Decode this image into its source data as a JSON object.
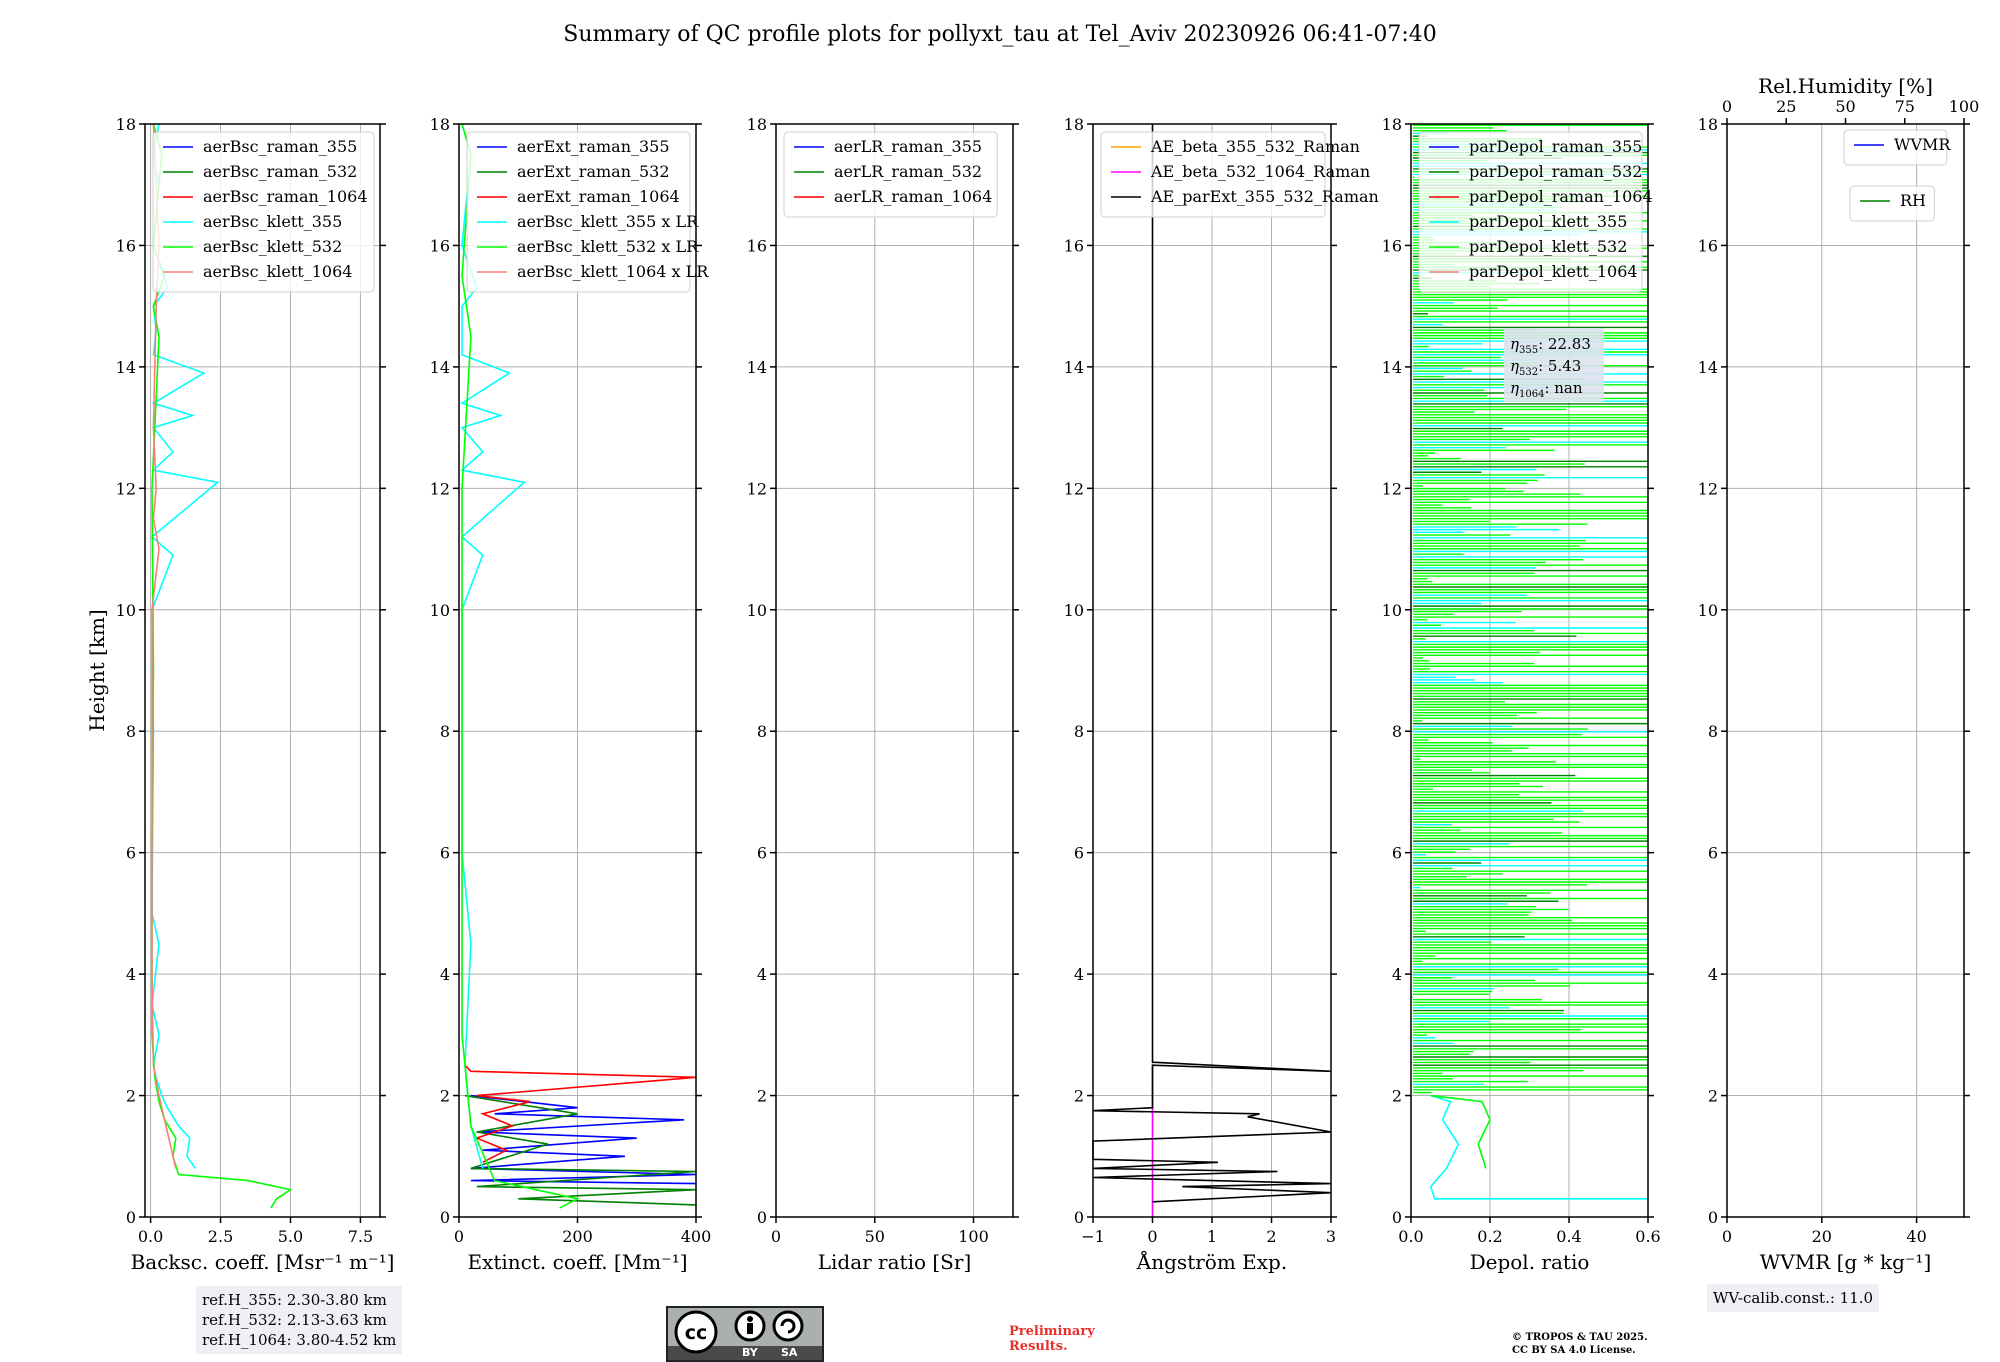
{
  "title": "Summary of QC profile plots for pollyxt_tau at Tel_Aviv 20230926 06:41-07:40",
  "footer": {
    "ref_heights": [
      "ref.H_355: 2.30-3.80 km",
      "ref.H_532: 2.13-3.63 km",
      "ref.H_1064: 3.80-4.52 km"
    ],
    "wv_calib": "WV-calib.const.: 11.0",
    "cc_labels": [
      "cc",
      "BY",
      "SA"
    ],
    "preliminary": [
      "Preliminary",
      "Results."
    ],
    "copyright": [
      "© TROPOS & TAU 2025.",
      "CC BY SA 4.0 License."
    ]
  },
  "colors": {
    "blue": "#0000ff",
    "green": "#008000",
    "red": "#ff0000",
    "cyan": "#00ffff",
    "lime": "#00ff00",
    "salmon": "#fa8072",
    "orange": "#ffa500",
    "magenta": "#ff00ff",
    "black": "#000000"
  },
  "chart_data": [
    {
      "type": "line",
      "ylabel": "Height [km]",
      "xlabel": "Backsc. coeff. [Msr⁻¹ m⁻¹]",
      "xlim": [
        -0.2,
        8.2
      ],
      "xticks": [
        0,
        2.5,
        5.0,
        7.5
      ],
      "xticklabels": [
        "0.0",
        "2.5",
        "5.0",
        "7.5"
      ],
      "ylim": [
        0,
        18
      ],
      "yticks": [
        0,
        2,
        4,
        6,
        8,
        10,
        12,
        14,
        16,
        18
      ],
      "legend": [
        "aerBsc_raman_355",
        "aerBsc_raman_532",
        "aerBsc_raman_1064",
        "aerBsc_klett_355",
        "aerBsc_klett_532",
        "aerBsc_klett_1064"
      ],
      "legend_colors": [
        "blue",
        "green",
        "red",
        "cyan",
        "lime",
        "salmon"
      ],
      "series": [
        {
          "name": "aerBsc_klett_355",
          "color": "cyan",
          "points": [
            [
              1.6,
              0.8
            ],
            [
              1.3,
              1.0
            ],
            [
              1.4,
              1.3
            ],
            [
              1.0,
              1.5
            ],
            [
              0.6,
              1.8
            ],
            [
              0.4,
              2.0
            ],
            [
              0.2,
              2.3
            ],
            [
              0.1,
              2.5
            ],
            [
              0.3,
              3.0
            ],
            [
              0.05,
              3.5
            ],
            [
              0.3,
              4.5
            ],
            [
              0.05,
              5
            ],
            [
              0.1,
              8
            ],
            [
              0.05,
              10
            ],
            [
              0.8,
              10.9
            ],
            [
              0.05,
              11.2
            ],
            [
              2.4,
              12.1
            ],
            [
              0.1,
              12.3
            ],
            [
              0.8,
              12.6
            ],
            [
              0.1,
              13
            ],
            [
              1.5,
              13.2
            ],
            [
              0.1,
              13.4
            ],
            [
              1.9,
              13.9
            ],
            [
              0.1,
              14.2
            ],
            [
              0.2,
              14.6
            ],
            [
              0.1,
              15
            ],
            [
              0.6,
              15.3
            ],
            [
              0.1,
              16
            ],
            [
              0.3,
              17
            ],
            [
              0.1,
              17.5
            ],
            [
              0.3,
              18
            ]
          ]
        },
        {
          "name": "aerBsc_klett_532",
          "color": "lime",
          "points": [
            [
              4.3,
              0.15
            ],
            [
              4.5,
              0.3
            ],
            [
              5.0,
              0.45
            ],
            [
              3.5,
              0.6
            ],
            [
              1.0,
              0.7
            ],
            [
              0.8,
              1.0
            ],
            [
              0.9,
              1.3
            ],
            [
              0.5,
              1.6
            ],
            [
              0.3,
              1.9
            ],
            [
              0.15,
              2.3
            ],
            [
              0.05,
              3
            ],
            [
              0.05,
              6
            ],
            [
              0.1,
              9
            ],
            [
              0.05,
              12
            ],
            [
              0.3,
              14.5
            ],
            [
              0.1,
              15
            ],
            [
              0.5,
              15.5
            ],
            [
              0.1,
              16
            ],
            [
              0.4,
              17.5
            ],
            [
              0.1,
              18
            ]
          ]
        },
        {
          "name": "aerBsc_klett_1064",
          "color": "salmon",
          "points": [
            [
              0.9,
              0.8
            ],
            [
              0.7,
              1.2
            ],
            [
              0.5,
              1.6
            ],
            [
              0.3,
              2.0
            ],
            [
              0.1,
              2.5
            ],
            [
              0.05,
              4
            ],
            [
              0.05,
              10
            ],
            [
              0.3,
              11
            ],
            [
              0.1,
              11.5
            ],
            [
              0.2,
              12
            ],
            [
              0.1,
              13
            ],
            [
              0.2,
              15
            ],
            [
              0.3,
              16
            ],
            [
              0.1,
              18
            ]
          ]
        }
      ]
    },
    {
      "type": "line",
      "xlabel": "Extinct. coeff. [Mm⁻¹]",
      "xlim": [
        0,
        400
      ],
      "xticks": [
        0,
        200,
        400
      ],
      "xticklabels": [
        "0",
        "200",
        "400"
      ],
      "ylim": [
        0,
        18
      ],
      "yticks": [
        0,
        2,
        4,
        6,
        8,
        10,
        12,
        14,
        16,
        18
      ],
      "legend": [
        "aerExt_raman_355",
        "aerExt_raman_532",
        "aerExt_raman_1064",
        "aerBsc_klett_355 x LR",
        "aerBsc_klett_532 x LR",
        "aerBsc_klett_1064 x LR"
      ],
      "legend_colors": [
        "blue",
        "green",
        "red",
        "cyan",
        "lime",
        "salmon"
      ],
      "series": [
        {
          "name": "aerExt_raman_355",
          "color": "blue",
          "points": [
            [
              400,
              0.55
            ],
            [
              20,
              0.6
            ],
            [
              400,
              0.7
            ],
            [
              20,
              0.8
            ],
            [
              280,
              1.0
            ],
            [
              40,
              1.1
            ],
            [
              300,
              1.3
            ],
            [
              30,
              1.4
            ],
            [
              380,
              1.6
            ],
            [
              60,
              1.7
            ],
            [
              200,
              1.8
            ],
            [
              20,
              2.0
            ]
          ]
        },
        {
          "name": "aerExt_raman_532",
          "color": "green",
          "points": [
            [
              400,
              0.2
            ],
            [
              100,
              0.3
            ],
            [
              400,
              0.45
            ],
            [
              30,
              0.5
            ],
            [
              400,
              0.75
            ],
            [
              20,
              0.8
            ],
            [
              150,
              1.2
            ],
            [
              30,
              1.4
            ],
            [
              200,
              1.7
            ],
            [
              10,
              2.0
            ]
          ]
        },
        {
          "name": "aerExt_raman_1064",
          "color": "red",
          "points": [
            [
              40,
              0.9
            ],
            [
              80,
              1.1
            ],
            [
              30,
              1.3
            ],
            [
              90,
              1.5
            ],
            [
              40,
              1.7
            ],
            [
              120,
              1.9
            ],
            [
              30,
              2.0
            ],
            [
              400,
              2.3
            ],
            [
              20,
              2.4
            ],
            [
              10,
              2.5
            ]
          ]
        },
        {
          "name": "aerBsc_klett_355 x LR",
          "color": "cyan",
          "points": [
            [
              40,
              0.8
            ],
            [
              20,
              1.5
            ],
            [
              10,
              2.5
            ],
            [
              20,
              4.5
            ],
            [
              5,
              6
            ],
            [
              5,
              10
            ],
            [
              40,
              10.9
            ],
            [
              5,
              11.2
            ],
            [
              110,
              12.1
            ],
            [
              5,
              12.3
            ],
            [
              40,
              12.6
            ],
            [
              5,
              13
            ],
            [
              70,
              13.2
            ],
            [
              5,
              13.4
            ],
            [
              85,
              13.9
            ],
            [
              5,
              14.2
            ],
            [
              5,
              15
            ],
            [
              30,
              15.3
            ],
            [
              5,
              16
            ],
            [
              20,
              17.5
            ],
            [
              5,
              18
            ]
          ]
        },
        {
          "name": "aerBsc_klett_532 x LR",
          "color": "lime",
          "points": [
            [
              170,
              0.15
            ],
            [
              200,
              0.3
            ],
            [
              60,
              0.6
            ],
            [
              20,
              1.5
            ],
            [
              5,
              3
            ],
            [
              5,
              8
            ],
            [
              5,
              12
            ],
            [
              20,
              14.5
            ],
            [
              5,
              15.5
            ],
            [
              20,
              17.5
            ],
            [
              5,
              18
            ]
          ]
        }
      ]
    },
    {
      "type": "line",
      "xlabel": "Lidar ratio [Sr]",
      "xlim": [
        0,
        120
      ],
      "xticks": [
        0,
        50,
        100
      ],
      "xticklabels": [
        "0",
        "50",
        "100"
      ],
      "ylim": [
        0,
        18
      ],
      "yticks": [
        0,
        2,
        4,
        6,
        8,
        10,
        12,
        14,
        16,
        18
      ],
      "legend": [
        "aerLR_raman_355",
        "aerLR_raman_532",
        "aerLR_raman_1064"
      ],
      "legend_colors": [
        "blue",
        "green",
        "red"
      ],
      "series": []
    },
    {
      "type": "line",
      "xlabel": "Ångström Exp.",
      "xlim": [
        -1,
        3
      ],
      "xticks": [
        -1,
        0,
        1,
        2,
        3
      ],
      "xticklabels": [
        "−1",
        "0",
        "1",
        "2",
        "3"
      ],
      "ylim": [
        0,
        18
      ],
      "yticks": [
        0,
        2,
        4,
        6,
        8,
        10,
        12,
        14,
        16,
        18
      ],
      "legend": [
        "AE_beta_355_532_Raman",
        "AE_beta_532_1064_Raman",
        "AE_parExt_355_532_Raman"
      ],
      "legend_colors": [
        "orange",
        "magenta",
        "black"
      ],
      "series": [
        {
          "name": "AE_beta_532_1064_Raman",
          "color": "magenta",
          "points": [
            [
              0,
              0
            ],
            [
              0,
              2.5
            ]
          ]
        },
        {
          "name": "AE_parExt_355_532_Raman",
          "color": "black",
          "points": [
            [
              0,
              0.25
            ],
            [
              3,
              0.4
            ],
            [
              0.5,
              0.5
            ],
            [
              3,
              0.55
            ],
            [
              -1,
              0.65
            ],
            [
              2.1,
              0.75
            ],
            [
              -1,
              0.8
            ],
            [
              1.1,
              0.9
            ],
            [
              -1,
              0.95
            ],
            [
              -1,
              1.25
            ],
            [
              3,
              1.4
            ],
            [
              1.6,
              1.65
            ],
            [
              1.8,
              1.7
            ],
            [
              -1,
              1.75
            ],
            [
              0,
              1.8
            ],
            [
              0,
              2.5
            ],
            [
              3,
              2.4
            ],
            [
              0,
              2.55
            ],
            [
              0,
              18
            ]
          ]
        }
      ]
    },
    {
      "type": "line",
      "xlabel": "Depol. ratio",
      "xlim": [
        0,
        0.6
      ],
      "xticks": [
        0,
        0.2,
        0.4,
        0.6
      ],
      "xticklabels": [
        "0.0",
        "0.2",
        "0.4",
        "0.6"
      ],
      "ylim": [
        0,
        18
      ],
      "yticks": [
        0,
        2,
        4,
        6,
        8,
        10,
        12,
        14,
        16,
        18
      ],
      "legend": [
        "parDepol_raman_355",
        "parDepol_raman_532",
        "parDepol_raman_1064",
        "parDepol_klett_355",
        "parDepol_klett_532",
        "parDepol_klett_1064"
      ],
      "legend_colors": [
        "blue",
        "green",
        "red",
        "cyan",
        "lime",
        "salmon"
      ],
      "annotation": [
        {
          "sub": "355",
          "value": "22.83"
        },
        {
          "sub": "532",
          "value": "5.43"
        },
        {
          "sub": "1064",
          "value": "nan"
        }
      ],
      "series": [
        {
          "name": "parDepol_klett_355",
          "color": "cyan",
          "points": [
            [
              0.6,
              0.3
            ],
            [
              0.06,
              0.3
            ],
            [
              0.05,
              0.5
            ],
            [
              0.09,
              0.8
            ],
            [
              0.12,
              1.2
            ],
            [
              0.08,
              1.6
            ],
            [
              0.1,
              1.9
            ],
            [
              0.05,
              2.0
            ]
          ]
        },
        {
          "name": "parDepol_klett_532",
          "color": "lime",
          "points": [
            [
              0.19,
              0.8
            ],
            [
              0.17,
              1.2
            ],
            [
              0.2,
              1.6
            ],
            [
              0.18,
              1.9
            ],
            [
              0.05,
              2.0
            ]
          ]
        }
      ]
    },
    {
      "type": "line",
      "xlabel": "WVMR [g * kg⁻¹]",
      "x2label": "Rel.Humidity [%]",
      "xlim": [
        0,
        50
      ],
      "xticks": [
        0,
        20,
        40
      ],
      "xticklabels": [
        "0",
        "20",
        "40"
      ],
      "x2lim": [
        0,
        100
      ],
      "x2ticks": [
        0,
        25,
        50,
        75,
        100
      ],
      "x2ticklabels": [
        "0",
        "25",
        "50",
        "75",
        "100"
      ],
      "ylim": [
        0,
        18
      ],
      "yticks": [
        0,
        2,
        4,
        6,
        8,
        10,
        12,
        14,
        16,
        18
      ],
      "legend": [
        "WVMR"
      ],
      "legend_colors": [
        "blue"
      ],
      "legend2": [
        "RH"
      ],
      "legend2_colors": [
        "green"
      ],
      "series": []
    }
  ]
}
